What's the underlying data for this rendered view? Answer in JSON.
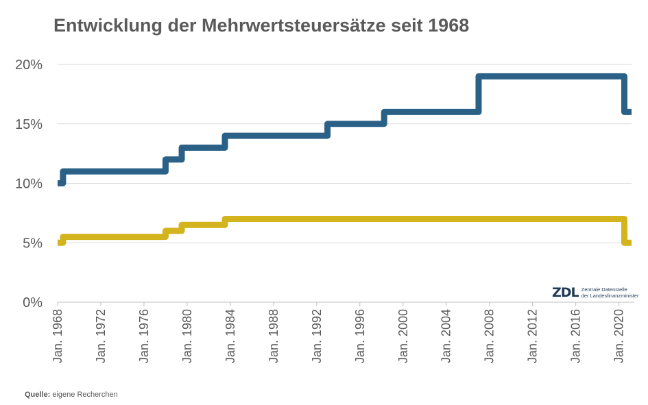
{
  "chart_data": {
    "type": "line",
    "title": "Entwicklung der Mehrwertsteuersätze seit 1968",
    "ylim": [
      0,
      20
    ],
    "xlim": [
      "1968-01",
      "2021-03"
    ],
    "y_ticks": [
      "0%",
      "5%",
      "10%",
      "15%",
      "20%"
    ],
    "x_ticks": [
      "Jan. 1968",
      "Jan. 1972",
      "Jan. 1976",
      "Jan. 1980",
      "Jan. 1984",
      "Jan. 1988",
      "Jan. 1992",
      "Jan. 1996",
      "Jan. 2000",
      "Jan. 2004",
      "Jan. 2008",
      "Jan. 2012",
      "Jan. 2016",
      "Jan. 2020"
    ],
    "grid": "horizontal",
    "step": true,
    "series": [
      {
        "color": "#2b6186",
        "points": [
          [
            "1968-01",
            10
          ],
          [
            "1968-07",
            11
          ],
          [
            "1978-01",
            12
          ],
          [
            "1979-07",
            13
          ],
          [
            "1983-07",
            14
          ],
          [
            "1993-01",
            15
          ],
          [
            "1998-04",
            16
          ],
          [
            "2007-01",
            19
          ],
          [
            "2020-07",
            16
          ],
          [
            "2021-03",
            16
          ]
        ]
      },
      {
        "color": "#d4b41c",
        "points": [
          [
            "1968-01",
            5
          ],
          [
            "1968-07",
            5.5
          ],
          [
            "1978-01",
            6
          ],
          [
            "1979-07",
            6.5
          ],
          [
            "1983-07",
            7
          ],
          [
            "2020-07",
            5
          ],
          [
            "2021-03",
            5
          ]
        ]
      }
    ]
  },
  "source": {
    "label": "Quelle:",
    "text": "eigene Recherchen"
  },
  "logo": {
    "mark": "ZDL",
    "line1": "Zentrale Datenstelle",
    "line2": "der Landesfinanzminister"
  }
}
